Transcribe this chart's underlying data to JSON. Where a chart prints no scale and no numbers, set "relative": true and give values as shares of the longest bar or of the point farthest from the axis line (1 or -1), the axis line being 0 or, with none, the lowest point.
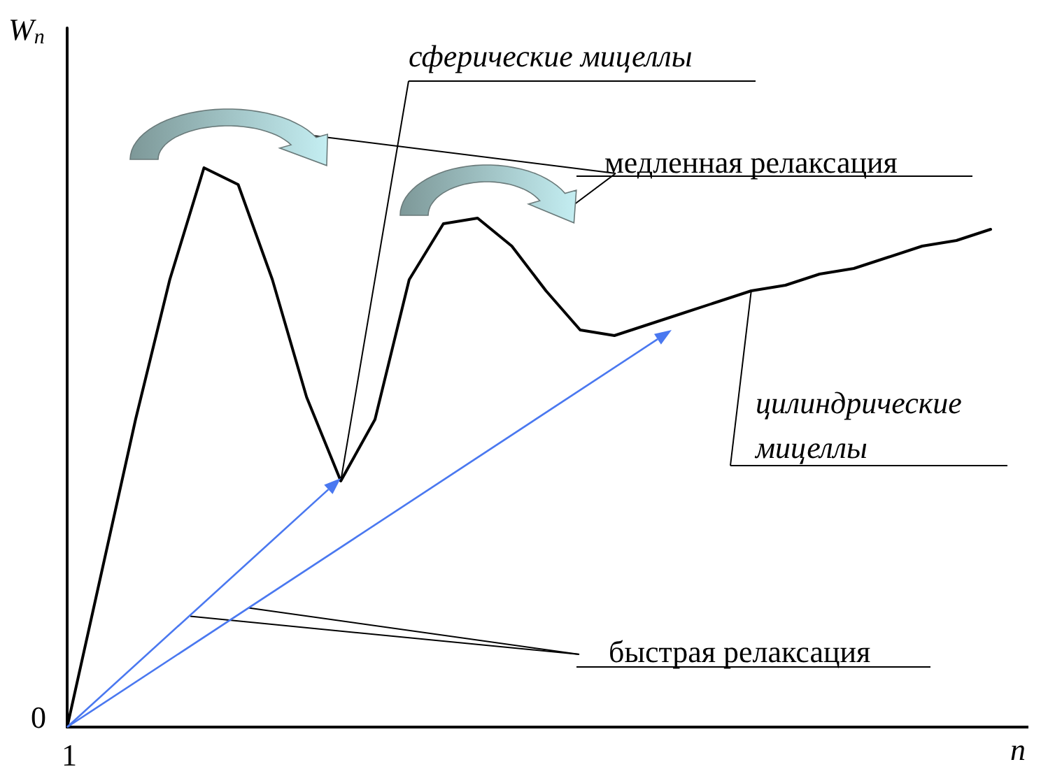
{
  "chart_data": {
    "type": "line",
    "relative": true,
    "xlabel": "n",
    "ylabel": "W$_{n}$",
    "categories": [
      null,
      null,
      null,
      null,
      null,
      null,
      null,
      null,
      null,
      null,
      null,
      null,
      null,
      null,
      null,
      null,
      null,
      null,
      null,
      null,
      null,
      null,
      null,
      null,
      null,
      null,
      null,
      null
    ],
    "series": [
      {
        "color": "#000000",
        "values": [
          0,
          0.275,
          0.55,
          0.8,
          1,
          0.97,
          0.8,
          0.59,
          0.44,
          0.55,
          0.8,
          0.9,
          0.91,
          0.86,
          0.78,
          0.71,
          0.7,
          0.72,
          0.74,
          0.76,
          0.78,
          0.79,
          0.81,
          0.82,
          0.84,
          0.86,
          0.87,
          0.89
        ]
      }
    ],
    "annotations": [
      "0",
      "1",
      "сферические мицеллы",
      "медленная релаксация",
      "цилиндрические мицеллы",
      "быстрая релаксация"
    ]
  }
}
